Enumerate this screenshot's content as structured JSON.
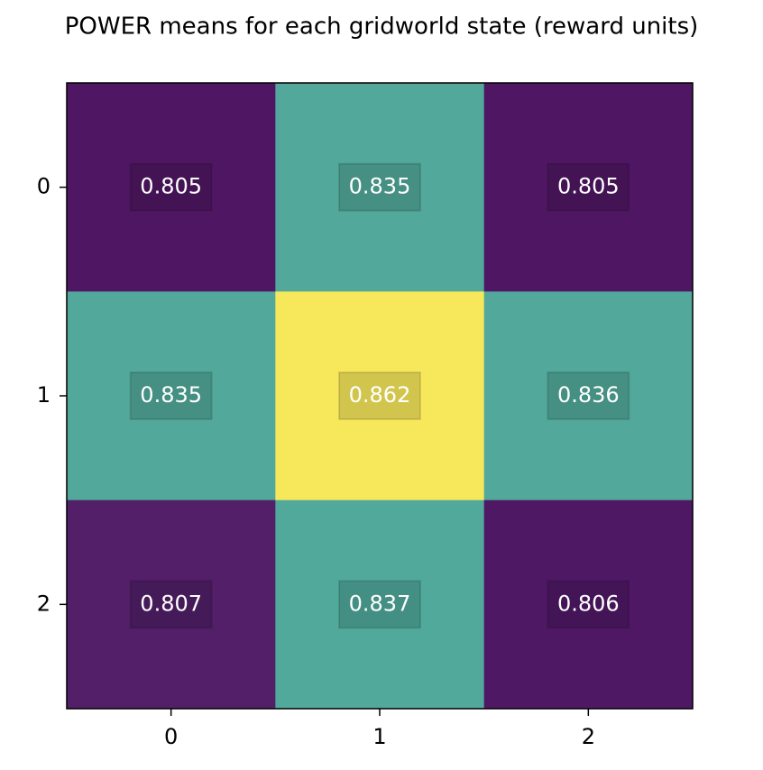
{
  "chart_data": {
    "type": "heatmap",
    "title": "POWER means for each gridworld state (reward units)",
    "values": [
      [
        0.805,
        0.835,
        0.805
      ],
      [
        0.835,
        0.862,
        0.836
      ],
      [
        0.807,
        0.837,
        0.806
      ]
    ],
    "colors": [
      [
        "#4f1763",
        "#52a89a",
        "#4f1763"
      ],
      [
        "#52a89a",
        "#f7e85b",
        "#52a89a"
      ],
      [
        "#521f68",
        "#50a99a",
        "#4f1865"
      ]
    ],
    "xlim": [
      -0.5,
      2.5
    ],
    "ylim": [
      2.5,
      -0.5
    ],
    "xticks": [
      0,
      1,
      2
    ],
    "yticks": [
      0,
      1,
      2
    ]
  }
}
